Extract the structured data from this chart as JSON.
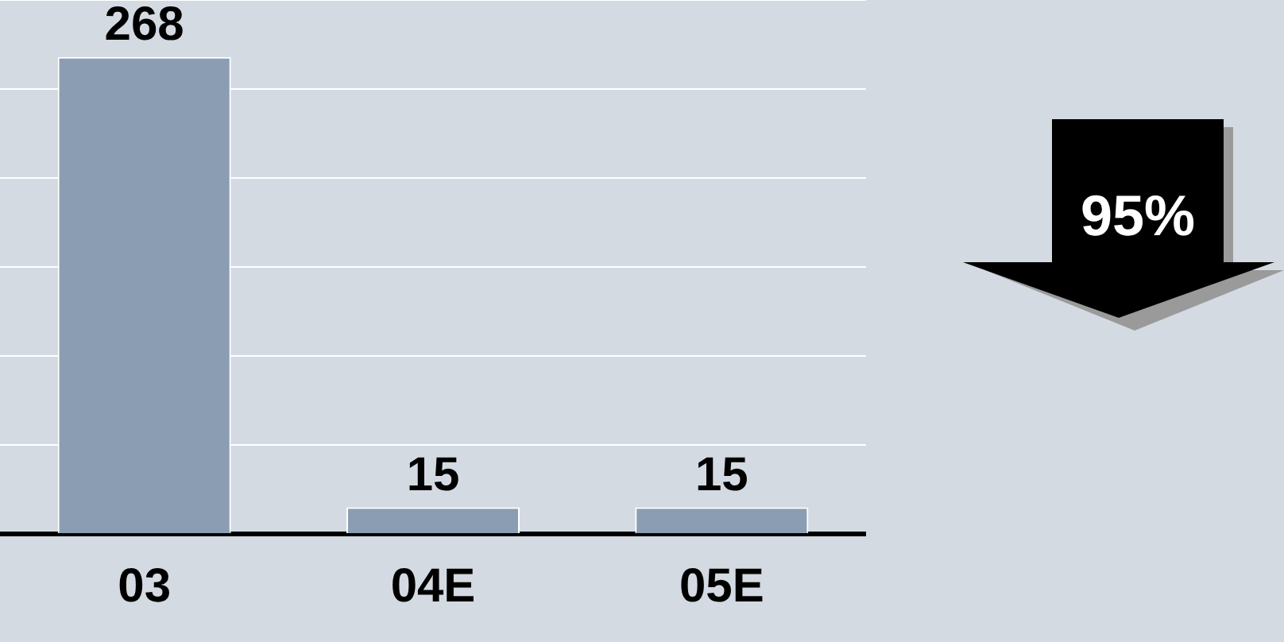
{
  "chart_data": {
    "type": "bar",
    "categories": [
      "03",
      "04E",
      "05E"
    ],
    "values": [
      268,
      15,
      15
    ],
    "color": "#8b9db2",
    "ylim": [
      0,
      300
    ],
    "yticks": [
      {
        "value": 0,
        "label": null
      },
      {
        "value": 50,
        "label": null
      },
      {
        "value": 100,
        "label": null
      },
      {
        "value": 150,
        "label": null
      },
      {
        "value": 200,
        "label": null
      },
      {
        "value": 250,
        "label": null
      },
      {
        "value": 300,
        "label": null
      }
    ],
    "tick_labels": "x",
    "grid": "y",
    "data_labels": true,
    "annotations": [
      "95%"
    ]
  }
}
